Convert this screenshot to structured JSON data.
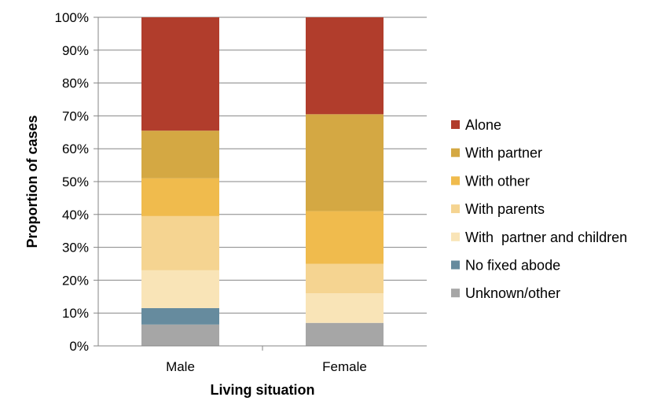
{
  "chart_data": {
    "type": "bar",
    "stacked": true,
    "categories": [
      "Male",
      "Female"
    ],
    "xlabel": "Living situation",
    "ylabel": "Proportion of cases",
    "ylim": [
      0,
      100
    ],
    "yticks": [
      "0%",
      "10%",
      "20%",
      "30%",
      "40%",
      "50%",
      "60%",
      "70%",
      "80%",
      "90%",
      "100%"
    ],
    "grid": true,
    "legend_position": "right",
    "series": [
      {
        "name": "Unknown/other",
        "color": "#a6a6a6",
        "values": [
          6.5,
          7
        ]
      },
      {
        "name": "No fixed abode",
        "color": "#668b9e",
        "values": [
          5,
          0
        ]
      },
      {
        "name": "With  partner and children",
        "color": "#f9e4b7",
        "values": [
          11.5,
          9
        ]
      },
      {
        "name": "With parents",
        "color": "#f5d491",
        "values": [
          16.5,
          9
        ]
      },
      {
        "name": "With other",
        "color": "#f0bb4d",
        "values": [
          11.5,
          16
        ]
      },
      {
        "name": "With partner",
        "color": "#d4a843",
        "values": [
          14.5,
          29.5
        ]
      },
      {
        "name": "Alone",
        "color": "#b13d2c",
        "values": [
          34.5,
          29.5
        ]
      }
    ],
    "legend_order": [
      "Alone",
      "With partner",
      "With other",
      "With parents",
      "With  partner and children",
      "No fixed abode",
      "Unknown/other"
    ]
  }
}
